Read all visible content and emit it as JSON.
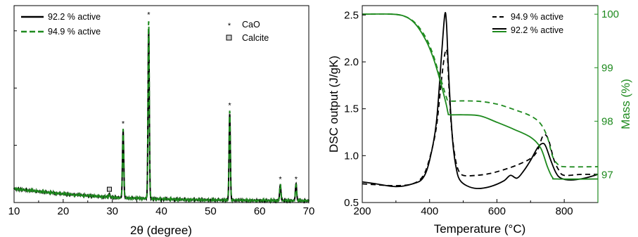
{
  "figure": {
    "background": "#ffffff"
  },
  "chart_data": [
    {
      "type": "line",
      "title": "",
      "xlabel": "2θ (degree)",
      "ylabel": "",
      "xlim": [
        10,
        70
      ],
      "x_ticks": [
        10,
        20,
        30,
        40,
        50,
        60,
        70
      ],
      "y_tick_labels_shown": false,
      "grid": false,
      "legend_position": "top-left",
      "colors": {
        "black": "#000000",
        "green": "#1e8a1e"
      },
      "series": [
        {
          "name": "92.2 % active",
          "color": "#000000",
          "style": "solid",
          "baseline": [
            [
              10,
              0.12
            ],
            [
              20,
              0.075
            ],
            [
              30,
              0.045
            ],
            [
              40,
              0.03
            ],
            [
              50,
              0.022
            ],
            [
              60,
              0.018
            ],
            [
              70,
              0.015
            ]
          ],
          "peaks": [
            [
              29.4,
              0.03
            ],
            [
              32.2,
              0.58
            ],
            [
              37.4,
              1.48
            ],
            [
              53.9,
              0.75
            ],
            [
              64.2,
              0.14
            ],
            [
              67.4,
              0.15
            ]
          ]
        },
        {
          "name": "94.9 % active",
          "color": "#1e8a1e",
          "style": "dashed",
          "baseline": [
            [
              10,
              0.12
            ],
            [
              20,
              0.075
            ],
            [
              30,
              0.045
            ],
            [
              40,
              0.03
            ],
            [
              50,
              0.022
            ],
            [
              60,
              0.018
            ],
            [
              70,
              0.015
            ]
          ],
          "peaks": [
            [
              29.4,
              0.02
            ],
            [
              32.2,
              0.6
            ],
            [
              37.4,
              1.56
            ],
            [
              53.9,
              0.78
            ],
            [
              64.2,
              0.14
            ],
            [
              67.4,
              0.14
            ]
          ]
        }
      ],
      "phase_markers": [
        {
          "phase": "CaO",
          "symbol": "*",
          "positions": [
            32.2,
            37.4,
            53.9,
            64.2,
            67.4
          ]
        },
        {
          "phase": "Calcite",
          "symbol": "□",
          "positions": [
            29.4
          ]
        }
      ],
      "legend_entries": [
        "92.2 % active",
        "94.9 % active"
      ],
      "marker_legend": [
        "CaO",
        "Calcite"
      ]
    },
    {
      "type": "line",
      "title": "",
      "xlabel": "Temperature (°C)",
      "ylabel": "DSC output (J/gK)",
      "y2label": "Mass (%)",
      "xlim": [
        200,
        900
      ],
      "ylim": [
        0.5,
        2.6
      ],
      "y2lim": [
        96.48,
        100.16
      ],
      "x_ticks": [
        200,
        400,
        600,
        800
      ],
      "y_ticks": [
        0.5,
        1.0,
        1.5,
        2.0,
        2.5
      ],
      "y2_ticks": [
        97,
        98,
        99,
        100
      ],
      "grid": false,
      "legend_position": "top-right",
      "legend_entries": [
        "94.9 % active",
        "92.2 % active"
      ],
      "series": [
        {
          "name": "92.2 % active",
          "quantity": "DSC",
          "axis": "left",
          "color": "#000000",
          "style": "solid",
          "points": [
            [
              200,
              0.72
            ],
            [
              240,
              0.7
            ],
            [
              300,
              0.67
            ],
            [
              350,
              0.7
            ],
            [
              380,
              0.76
            ],
            [
              400,
              0.95
            ],
            [
              420,
              1.35
            ],
            [
              435,
              2.05
            ],
            [
              445,
              2.5
            ],
            [
              450,
              2.42
            ],
            [
              455,
              2.0
            ],
            [
              462,
              1.5
            ],
            [
              470,
              1.1
            ],
            [
              480,
              0.85
            ],
            [
              490,
              0.74
            ],
            [
              510,
              0.68
            ],
            [
              540,
              0.65
            ],
            [
              580,
              0.67
            ],
            [
              620,
              0.73
            ],
            [
              640,
              0.79
            ],
            [
              660,
              0.76
            ],
            [
              680,
              0.84
            ],
            [
              700,
              0.95
            ],
            [
              720,
              1.08
            ],
            [
              735,
              1.13
            ],
            [
              745,
              1.1
            ],
            [
              760,
              0.95
            ],
            [
              775,
              0.82
            ],
            [
              790,
              0.76
            ],
            [
              820,
              0.74
            ],
            [
              860,
              0.76
            ],
            [
              900,
              0.8
            ]
          ]
        },
        {
          "name": "94.9 % active",
          "quantity": "DSC",
          "axis": "left",
          "color": "#000000",
          "style": "dashed",
          "points": [
            [
              200,
              0.7
            ],
            [
              240,
              0.69
            ],
            [
              300,
              0.68
            ],
            [
              350,
              0.7
            ],
            [
              380,
              0.78
            ],
            [
              400,
              0.97
            ],
            [
              420,
              1.3
            ],
            [
              435,
              1.8
            ],
            [
              445,
              2.08
            ],
            [
              452,
              2.1
            ],
            [
              458,
              1.7
            ],
            [
              465,
              1.3
            ],
            [
              475,
              1.0
            ],
            [
              485,
              0.85
            ],
            [
              500,
              0.79
            ],
            [
              540,
              0.79
            ],
            [
              580,
              0.81
            ],
            [
              620,
              0.85
            ],
            [
              660,
              0.9
            ],
            [
              700,
              0.97
            ],
            [
              720,
              1.05
            ],
            [
              735,
              1.2
            ],
            [
              745,
              1.22
            ],
            [
              755,
              1.15
            ],
            [
              770,
              0.95
            ],
            [
              785,
              0.84
            ],
            [
              800,
              0.79
            ],
            [
              850,
              0.8
            ],
            [
              900,
              0.8
            ]
          ]
        },
        {
          "name": "92.2 % active",
          "quantity": "Mass",
          "axis": "right",
          "color": "#1e8a1e",
          "style": "solid",
          "points": [
            [
              200,
              100.0
            ],
            [
              290,
              100.0
            ],
            [
              330,
              99.95
            ],
            [
              360,
              99.8
            ],
            [
              390,
              99.5
            ],
            [
              410,
              99.2
            ],
            [
              425,
              98.9
            ],
            [
              440,
              98.55
            ],
            [
              450,
              98.3
            ],
            [
              455,
              98.15
            ],
            [
              460,
              98.12
            ],
            [
              500,
              98.12
            ],
            [
              550,
              98.1
            ],
            [
              600,
              97.98
            ],
            [
              650,
              97.85
            ],
            [
              700,
              97.7
            ],
            [
              730,
              97.5
            ],
            [
              750,
              97.15
            ],
            [
              765,
              96.95
            ],
            [
              780,
              96.92
            ],
            [
              900,
              96.92
            ]
          ]
        },
        {
          "name": "94.9 % active",
          "quantity": "Mass",
          "axis": "right",
          "color": "#1e8a1e",
          "style": "dashed",
          "points": [
            [
              200,
              100.0
            ],
            [
              290,
              100.0
            ],
            [
              330,
              99.95
            ],
            [
              360,
              99.82
            ],
            [
              390,
              99.55
            ],
            [
              410,
              99.25
            ],
            [
              425,
              98.95
            ],
            [
              440,
              98.65
            ],
            [
              450,
              98.45
            ],
            [
              458,
              98.38
            ],
            [
              500,
              98.38
            ],
            [
              550,
              98.37
            ],
            [
              600,
              98.32
            ],
            [
              650,
              98.22
            ],
            [
              700,
              98.1
            ],
            [
              730,
              97.95
            ],
            [
              750,
              97.7
            ],
            [
              765,
              97.35
            ],
            [
              780,
              97.2
            ],
            [
              800,
              97.15
            ],
            [
              900,
              97.15
            ]
          ]
        }
      ]
    }
  ]
}
